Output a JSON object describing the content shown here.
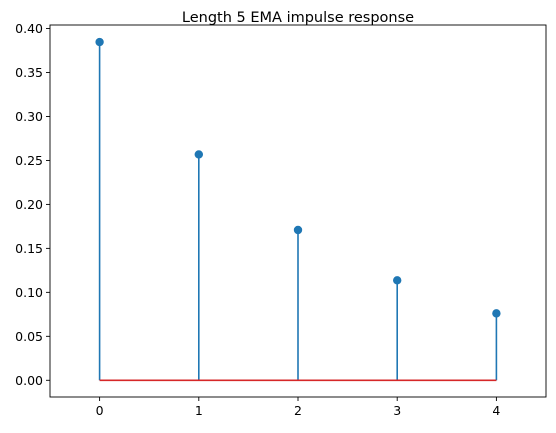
{
  "chart_data": {
    "type": "stem",
    "title": "Length 5 EMA impulse response",
    "xlabel": "",
    "ylabel": "",
    "x": [
      0,
      1,
      2,
      3,
      4
    ],
    "values": [
      0.3846,
      0.2568,
      0.1709,
      0.1137,
      0.0761
    ],
    "baseline": 0,
    "xlim": [
      -0.5,
      4.5
    ],
    "ylim": [
      -0.019,
      0.404
    ],
    "xticks": [
      "0",
      "1",
      "2",
      "3",
      "4"
    ],
    "yticks": [
      "0.00",
      "0.05",
      "0.10",
      "0.15",
      "0.20",
      "0.25",
      "0.30",
      "0.35",
      "0.40"
    ],
    "grid": false,
    "colors": {
      "stem": "#1f77b4",
      "marker": "#1f77b4",
      "baseline": "#d62728"
    }
  }
}
